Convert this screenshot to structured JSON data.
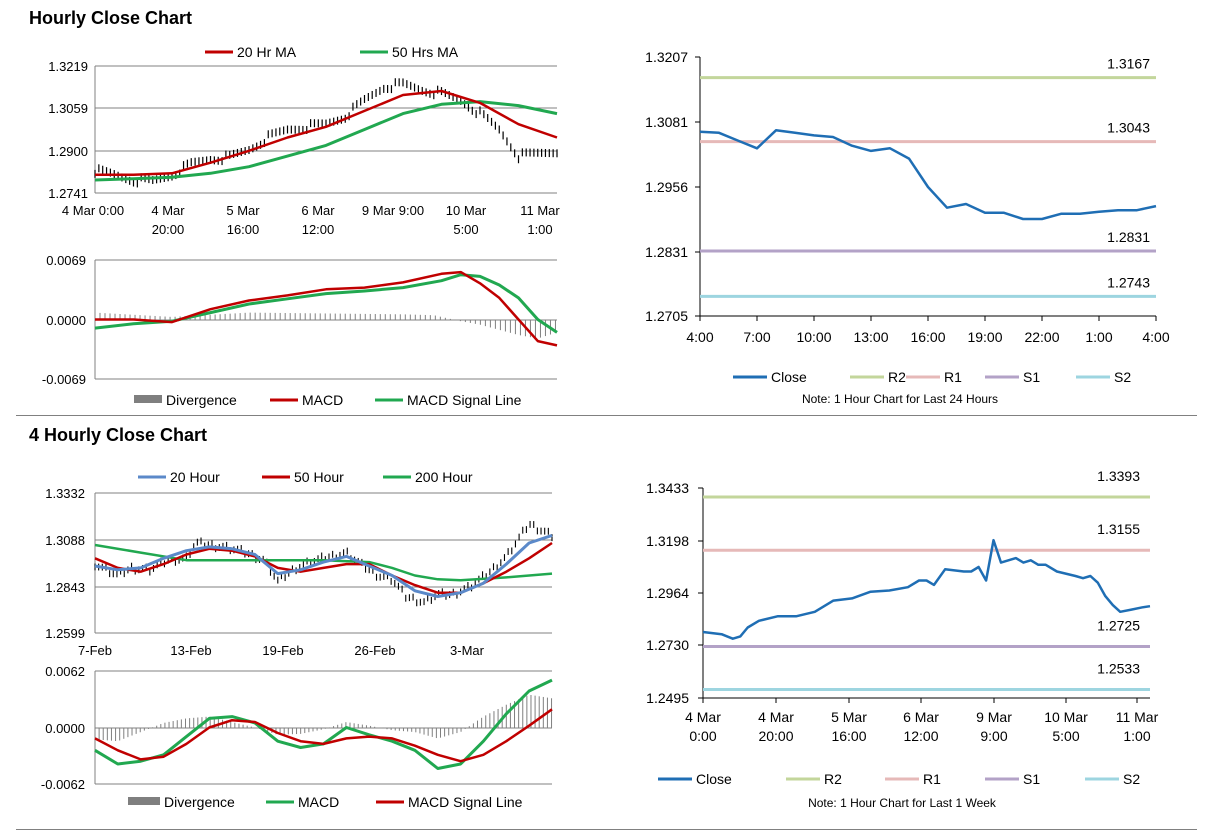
{
  "top_section": {
    "title": "Hourly Close Chart",
    "ma_chart": {
      "legend": [
        "20 Hr MA",
        "50 Hrs MA"
      ],
      "y_ticks": [
        "1.3219",
        "1.3059",
        "1.2900",
        "1.2741"
      ],
      "x_ticks": [
        [
          "4 Mar 0:00",
          ""
        ],
        [
          "4 Mar",
          "20:00"
        ],
        [
          "5 Mar",
          "16:00"
        ],
        [
          "6 Mar",
          "12:00"
        ],
        [
          "9 Mar 9:00",
          ""
        ],
        [
          "10 Mar",
          "5:00"
        ],
        [
          "11 Mar",
          "1:00"
        ]
      ]
    },
    "macd_chart": {
      "y_ticks": [
        "0.0069",
        "0.0000",
        "-0.0069"
      ],
      "legend": [
        "Divergence",
        "MACD",
        "MACD Signal Line"
      ]
    },
    "sr_chart": {
      "y_ticks": [
        "1.3207",
        "1.3081",
        "1.2956",
        "1.2831",
        "1.2705"
      ],
      "x_ticks": [
        "4:00",
        "7:00",
        "10:00",
        "13:00",
        "16:00",
        "19:00",
        "22:00",
        "1:00",
        "4:00"
      ],
      "level_labels": [
        "1.3167",
        "1.3043",
        "1.2831",
        "1.2743"
      ],
      "legend": [
        "Close",
        "R2",
        "R1",
        "S1",
        "S2"
      ],
      "note": "Note: 1 Hour Chart for Last 24 Hours"
    }
  },
  "bottom_section": {
    "title": "4 Hourly Close Chart",
    "ma_chart": {
      "legend": [
        "20 Hour",
        "50 Hour",
        "200 Hour"
      ],
      "y_ticks": [
        "1.3332",
        "1.3088",
        "1.2843",
        "1.2599"
      ],
      "x_ticks": [
        "7-Feb",
        "13-Feb",
        "19-Feb",
        "26-Feb",
        "3-Mar"
      ]
    },
    "macd_chart": {
      "y_ticks": [
        "0.0062",
        "0.0000",
        "-0.0062"
      ],
      "legend": [
        "Divergence",
        "MACD",
        "MACD Signal Line"
      ]
    },
    "sr_chart": {
      "y_ticks": [
        "1.3433",
        "1.3198",
        "1.2964",
        "1.2730",
        "1.2495"
      ],
      "x_ticks": [
        [
          "4 Mar",
          "0:00"
        ],
        [
          "4 Mar",
          "20:00"
        ],
        [
          "5 Mar",
          "16:00"
        ],
        [
          "6 Mar",
          "12:00"
        ],
        [
          "9 Mar",
          "9:00"
        ],
        [
          "10 Mar",
          "5:00"
        ],
        [
          "11 Mar",
          "1:00"
        ]
      ],
      "level_labels": [
        "1.3393",
        "1.3155",
        "1.2725",
        "1.2533"
      ],
      "legend": [
        "Close",
        "R2",
        "R1",
        "S1",
        "S2"
      ],
      "note": "Note: 1 Hour Chart for Last 1 Week"
    }
  },
  "colors": {
    "ma_red": "#C00000",
    "ma_green": "#21A850",
    "ma_blue": "#5B89C9",
    "price_black": "#000000",
    "divergence": "#7F7F7F",
    "close_blue": "#1F6EB4",
    "r2": "#C3D69B",
    "r1": "#E6B9B8",
    "s1": "#B3A2C7",
    "s2": "#9DD5E0",
    "grid": "#808080"
  },
  "chart_data": [
    {
      "id": "hourly_ma",
      "type": "line",
      "title": "Hourly Close Chart",
      "ylim": [
        1.2741,
        1.3219
      ],
      "categories": [
        "4 Mar 0:00",
        "4 Mar 20:00",
        "5 Mar 16:00",
        "6 Mar 12:00",
        "9 Mar 9:00",
        "10 Mar 5:00",
        "11 Mar 1:00"
      ],
      "x_count": 120,
      "series": [
        {
          "name": "Price",
          "x": [
            0,
            5,
            10,
            15,
            20,
            25,
            30,
            35,
            40,
            45,
            50,
            55,
            60,
            65,
            70,
            75,
            80,
            85,
            90,
            95,
            100,
            105,
            110,
            115,
            120
          ],
          "values": [
            1.2825,
            1.281,
            1.279,
            1.2785,
            1.281,
            1.285,
            1.287,
            1.2875,
            1.2905,
            1.295,
            1.298,
            1.299,
            1.3,
            1.303,
            1.309,
            1.314,
            1.315,
            1.313,
            1.3115,
            1.309,
            1.304,
            1.298,
            1.288,
            1.289,
            1.29
          ]
        },
        {
          "name": "20 Hr MA",
          "x": [
            0,
            10,
            20,
            30,
            40,
            50,
            60,
            70,
            80,
            90,
            100,
            110,
            120
          ],
          "values": [
            1.281,
            1.281,
            1.2815,
            1.2855,
            1.29,
            1.295,
            1.299,
            1.305,
            1.311,
            1.3125,
            1.308,
            1.3,
            1.295
          ]
        },
        {
          "name": "50 Hrs MA",
          "x": [
            0,
            10,
            20,
            30,
            40,
            50,
            60,
            70,
            80,
            90,
            100,
            110,
            120
          ],
          "values": [
            1.279,
            1.2795,
            1.28,
            1.2815,
            1.284,
            1.288,
            1.292,
            1.298,
            1.304,
            1.3075,
            1.3085,
            1.307,
            1.304
          ]
        }
      ]
    },
    {
      "id": "hourly_macd",
      "type": "line",
      "ylim": [
        -0.0069,
        0.0069
      ],
      "x_count": 120,
      "series": [
        {
          "name": "MACD",
          "x": [
            0,
            10,
            20,
            30,
            40,
            50,
            60,
            70,
            80,
            90,
            95,
            100,
            105,
            110,
            115,
            120
          ],
          "values": [
            0.0,
            0.0,
            -0.0003,
            0.0012,
            0.0022,
            0.0028,
            0.0035,
            0.0037,
            0.0043,
            0.0053,
            0.0055,
            0.0042,
            0.0025,
            0.0,
            -0.0025,
            -0.003
          ]
        },
        {
          "name": "MACD Signal Line",
          "x": [
            0,
            10,
            20,
            30,
            40,
            50,
            60,
            70,
            80,
            90,
            95,
            100,
            105,
            110,
            115,
            120
          ],
          "values": [
            -0.001,
            -0.0005,
            -0.0002,
            0.0008,
            0.0018,
            0.0024,
            0.003,
            0.0033,
            0.0037,
            0.0045,
            0.0052,
            0.005,
            0.004,
            0.0025,
            0.0,
            -0.0015
          ]
        },
        {
          "name": "Divergence",
          "x": [
            0,
            20,
            40,
            60,
            80,
            88,
            95,
            100,
            105,
            110,
            115,
            120
          ],
          "values": [
            0.0008,
            0.0003,
            0.0008,
            0.0007,
            0.0006,
            0.0005,
            -0.0002,
            -0.0006,
            -0.0012,
            -0.0018,
            -0.0022,
            -0.0015
          ]
        }
      ]
    },
    {
      "id": "hourly_sr",
      "type": "line",
      "xlabel": "",
      "ylabel": "",
      "ylim": [
        1.2705,
        1.3207
      ],
      "categories": [
        "4:00",
        "7:00",
        "10:00",
        "13:00",
        "16:00",
        "19:00",
        "22:00",
        "1:00",
        "4:00"
      ],
      "x": [
        0,
        1,
        2,
        3,
        4,
        5,
        6,
        7,
        8,
        9,
        10,
        11,
        12,
        13,
        14,
        15,
        16,
        17,
        18,
        19,
        20,
        21,
        22,
        23,
        24
      ],
      "close": [
        1.3062,
        1.306,
        1.3045,
        1.303,
        1.3065,
        1.306,
        1.3055,
        1.3052,
        1.3035,
        1.3025,
        1.303,
        1.301,
        1.2955,
        1.2915,
        1.2922,
        1.2905,
        1.2905,
        1.2893,
        1.2893,
        1.2903,
        1.2903,
        1.2907,
        1.291,
        1.291,
        1.2918
      ],
      "levels": {
        "R2": 1.3167,
        "R1": 1.3043,
        "S1": 1.2831,
        "S2": 1.2743
      },
      "legend": [
        "Close",
        "R2",
        "R1",
        "S1",
        "S2"
      ],
      "note": "Note: 1 Hour Chart for Last 24 Hours"
    },
    {
      "id": "four_hourly_ma",
      "type": "line",
      "title": "4 Hourly Close Chart",
      "ylim": [
        1.2599,
        1.3332
      ],
      "categories": [
        "7-Feb",
        "13-Feb",
        "19-Feb",
        "26-Feb",
        "3-Mar"
      ],
      "x_count": 100,
      "series": [
        {
          "name": "Price",
          "x": [
            0,
            5,
            8,
            12,
            16,
            20,
            22,
            25,
            28,
            30,
            33,
            37,
            40,
            44,
            47,
            50,
            55,
            58,
            62,
            65,
            68,
            72,
            75,
            78,
            82,
            86,
            90,
            95,
            100
          ],
          "values": [
            1.296,
            1.29,
            1.294,
            1.293,
            1.298,
            1.299,
            1.307,
            1.306,
            1.305,
            1.304,
            1.302,
            1.298,
            1.287,
            1.294,
            1.297,
            1.299,
            1.302,
            1.296,
            1.29,
            1.288,
            1.279,
            1.276,
            1.28,
            1.28,
            1.284,
            1.291,
            1.3,
            1.317,
            1.311
          ]
        },
        {
          "name": "20 Hour",
          "x": [
            0,
            5,
            10,
            15,
            20,
            25,
            30,
            35,
            40,
            45,
            50,
            55,
            60,
            65,
            70,
            75,
            80,
            85,
            90,
            95,
            100
          ],
          "values": [
            1.295,
            1.293,
            1.294,
            1.299,
            1.303,
            1.305,
            1.304,
            1.301,
            1.291,
            1.293,
            1.297,
            1.3,
            1.295,
            1.29,
            1.282,
            1.279,
            1.281,
            1.286,
            1.296,
            1.307,
            1.311
          ]
        },
        {
          "name": "50 Hour",
          "x": [
            0,
            5,
            10,
            15,
            20,
            25,
            30,
            35,
            40,
            45,
            50,
            55,
            60,
            65,
            70,
            75,
            80,
            85,
            90,
            95,
            100
          ],
          "values": [
            1.299,
            1.294,
            1.292,
            1.296,
            1.301,
            1.304,
            1.303,
            1.3,
            1.294,
            1.292,
            1.294,
            1.296,
            1.296,
            1.29,
            1.285,
            1.281,
            1.281,
            1.286,
            1.292,
            1.299,
            1.307
          ]
        },
        {
          "name": "200 Hour",
          "x": [
            0,
            10,
            20,
            30,
            40,
            50,
            60,
            65,
            70,
            75,
            80,
            90,
            100
          ],
          "values": [
            1.306,
            1.302,
            1.298,
            1.298,
            1.298,
            1.298,
            1.297,
            1.294,
            1.29,
            1.288,
            1.2875,
            1.289,
            1.291
          ]
        }
      ]
    },
    {
      "id": "four_hourly_macd",
      "type": "line",
      "ylim": [
        -0.0062,
        0.0062
      ],
      "x_count": 100,
      "series": [
        {
          "name": "MACD",
          "x": [
            0,
            5,
            10,
            15,
            20,
            25,
            30,
            35,
            40,
            45,
            50,
            55,
            60,
            65,
            70,
            75,
            80,
            85,
            90,
            95,
            100
          ],
          "values": [
            -0.0025,
            -0.004,
            -0.0037,
            -0.003,
            -0.001,
            0.001,
            0.0012,
            0.0005,
            -0.0015,
            -0.0022,
            -0.0018,
            0.0,
            -0.0008,
            -0.0015,
            -0.0025,
            -0.0045,
            -0.004,
            -0.0015,
            0.0015,
            0.004,
            0.0052
          ]
        },
        {
          "name": "MACD Signal Line",
          "x": [
            0,
            5,
            10,
            15,
            20,
            25,
            30,
            35,
            40,
            45,
            50,
            55,
            60,
            65,
            70,
            75,
            80,
            85,
            90,
            95,
            100
          ],
          "values": [
            -0.0012,
            -0.0025,
            -0.0035,
            -0.0032,
            -0.0018,
            0.0,
            0.0008,
            0.0006,
            -0.0006,
            -0.0015,
            -0.0018,
            -0.0012,
            -0.001,
            -0.0012,
            -0.002,
            -0.003,
            -0.0037,
            -0.003,
            -0.0015,
            0.0002,
            0.002
          ]
        },
        {
          "name": "Divergence",
          "x": [
            0,
            5,
            10,
            15,
            20,
            25,
            30,
            35,
            40,
            45,
            50,
            55,
            60,
            65,
            70,
            75,
            80,
            85,
            90,
            95,
            100
          ],
          "values": [
            -0.0013,
            -0.0015,
            -0.0005,
            0.0005,
            0.001,
            0.0012,
            0.0006,
            0.0,
            -0.0008,
            -0.0007,
            -0.0002,
            0.0006,
            0.0002,
            -0.0003,
            -0.0005,
            -0.0012,
            -0.0005,
            0.0012,
            0.0025,
            0.0036,
            0.0032
          ]
        }
      ]
    },
    {
      "id": "four_hourly_sr",
      "type": "line",
      "ylim": [
        1.2495,
        1.3433
      ],
      "categories": [
        "4 Mar 0:00",
        "4 Mar 20:00",
        "5 Mar 16:00",
        "6 Mar 12:00",
        "9 Mar 9:00",
        "10 Mar 5:00",
        "11 Mar 1:00"
      ],
      "x": [
        0,
        5,
        8,
        10,
        12,
        15,
        20,
        25,
        30,
        35,
        40,
        45,
        50,
        55,
        58,
        60,
        62,
        65,
        70,
        72,
        74,
        76,
        78,
        80,
        84,
        86,
        88,
        90,
        92,
        95,
        100,
        102,
        104,
        106,
        108,
        110,
        112,
        115,
        118,
        120
      ],
      "close": [
        1.279,
        1.278,
        1.276,
        1.277,
        1.281,
        1.284,
        1.286,
        1.286,
        1.288,
        1.293,
        1.294,
        1.297,
        1.2975,
        1.299,
        1.302,
        1.302,
        1.3,
        1.307,
        1.306,
        1.306,
        1.308,
        1.302,
        1.32,
        1.31,
        1.312,
        1.31,
        1.311,
        1.309,
        1.309,
        1.306,
        1.304,
        1.303,
        1.304,
        1.301,
        1.295,
        1.291,
        1.288,
        1.289,
        1.29,
        1.2905
      ],
      "levels": {
        "R2": 1.3393,
        "R1": 1.3155,
        "S1": 1.2725,
        "S2": 1.2533
      },
      "legend": [
        "Close",
        "R2",
        "R1",
        "S1",
        "S2"
      ],
      "note": "Note: 1 Hour Chart for Last 1 Week"
    }
  ]
}
